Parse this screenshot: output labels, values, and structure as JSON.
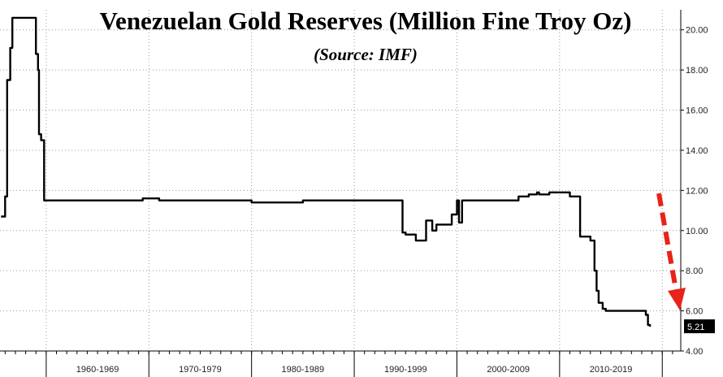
{
  "chart_data": {
    "type": "line",
    "title": "Venezuelan Gold Reserves (Million Fine Troy Oz)",
    "subtitle": "(Source: IMF)",
    "x_range": [
      1955.5,
      2021.8
    ],
    "ylim": [
      4,
      21
    ],
    "y_ticks": [
      "4.00",
      "6.00",
      "8.00",
      "10.00",
      "12.00",
      "14.00",
      "16.00",
      "18.00",
      "20.00"
    ],
    "x_categories": [
      "1960-1969",
      "1970-1979",
      "1980-1989",
      "1990-1999",
      "2000-2009",
      "2010-2019"
    ],
    "grid": true,
    "line_color": "#000000",
    "arrow_color": "#e8231a",
    "last_value_label": "5.21",
    "series": [
      {
        "x": [
          1955.6,
          1955.9,
          1956.0,
          1956.2,
          1956.5,
          1956.7,
          1957.2,
          1958.9,
          1959.0,
          1959.2,
          1959.3,
          1959.5,
          1959.8,
          1960.0,
          1969.0,
          1969.4,
          1970.0,
          1971.0,
          1979.0,
          1980.0,
          1985.0,
          1990.0,
          1994.5,
          1994.7,
          1995.0,
          1995.7,
          1996.0,
          1997.0,
          1997.6,
          1998.0,
          1999.5,
          2000.0,
          2000.2,
          2000.5,
          2001.0,
          2002.0,
          2004.0,
          2005.0,
          2005.3,
          2006.0,
          2007.0,
          2007.8,
          2008.0,
          2008.5,
          2009.0,
          2010.0,
          2011.0,
          2012.0,
          2013.0,
          2013.4,
          2013.6,
          2013.8,
          2014.2,
          2014.5,
          2015.0,
          2016.0,
          2017.0,
          2017.5,
          2018.0,
          2018.4,
          2018.6,
          2018.8
        ],
        "y": [
          10.7,
          10.7,
          11.7,
          17.5,
          19.1,
          20.6,
          20.6,
          20.6,
          18.8,
          18.0,
          14.8,
          14.5,
          11.5,
          11.5,
          11.5,
          11.6,
          11.6,
          11.5,
          11.5,
          11.4,
          11.5,
          11.5,
          11.5,
          9.9,
          9.8,
          9.8,
          9.5,
          10.5,
          10.0,
          10.3,
          10.8,
          11.5,
          10.4,
          11.5,
          11.5,
          11.5,
          11.5,
          11.5,
          11.5,
          11.7,
          11.8,
          11.9,
          11.8,
          11.8,
          11.9,
          11.9,
          11.7,
          9.7,
          9.5,
          8.0,
          7.0,
          6.4,
          6.1,
          6.0,
          6.0,
          6.0,
          6.0,
          6.0,
          6.0,
          5.8,
          5.3,
          5.21
        ]
      }
    ]
  }
}
